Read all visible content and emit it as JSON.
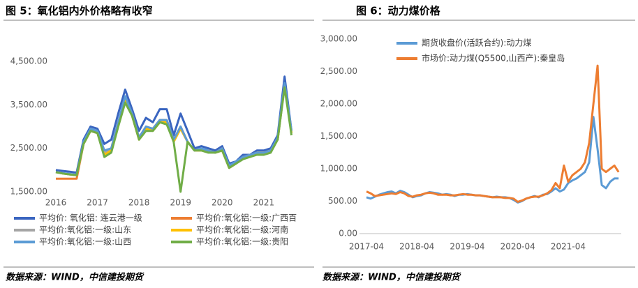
{
  "chart_data": [
    {
      "type": "line",
      "title": "图 5：氧化铝内外价格略有收窄",
      "source": "数据来源：WIND，中信建投期货",
      "categories": [
        "2016",
        null,
        null,
        null,
        null,
        null,
        "2017",
        null,
        null,
        null,
        null,
        null,
        "2018",
        null,
        null,
        null,
        null,
        null,
        "2019",
        null,
        null,
        null,
        null,
        null,
        "2020",
        null,
        null,
        null,
        null,
        null,
        "2021",
        null,
        null,
        null,
        null
      ],
      "ylim": [
        1500,
        4500
      ],
      "yticks": [
        {
          "value": 1500,
          "label": "1,500.00"
        },
        {
          "value": 2500,
          "label": "2,500.00"
        },
        {
          "value": 3500,
          "label": "3,500.00"
        },
        {
          "value": 4500,
          "label": "4,500.00"
        }
      ],
      "series": [
        {
          "name": "平均价:  氧化铝:  连云港一级",
          "color": "#3a65c0",
          "values": [
            2000,
            1980,
            1960,
            1940,
            2700,
            3000,
            2950,
            2600,
            2700,
            3300,
            3850,
            3400,
            2900,
            3200,
            3100,
            3400,
            3400,
            2800,
            3300,
            2900,
            2500,
            2550,
            2500,
            2450,
            2550,
            2150,
            2200,
            2350,
            2350,
            2450,
            2450,
            2500,
            2800,
            4150,
            2900
          ]
        },
        {
          "name": "平均价:氧化铝:一级:广西百",
          "color": "#ed7d31",
          "values": [
            1800,
            1800,
            1800,
            1800,
            2600,
            2900,
            2850,
            2400,
            2500,
            3100,
            3650,
            3300,
            2750,
            3000,
            2950,
            3150,
            3150,
            2700,
            3000,
            2650,
            2450,
            2450,
            2450,
            2400,
            2500,
            2050,
            2150,
            2300,
            2350,
            2400,
            2400,
            2450,
            2700,
            3950,
            2850
          ]
        },
        {
          "name": "平均价:氧化铝:一级:山东",
          "color": "#a5a5a5",
          "values": [
            1950,
            1920,
            1900,
            1880,
            2600,
            2900,
            2850,
            2400,
            2450,
            3050,
            3600,
            3250,
            2700,
            2950,
            2900,
            3100,
            3100,
            2650,
            2950,
            2650,
            2450,
            2450,
            2450,
            2400,
            2450,
            2050,
            2150,
            2300,
            2300,
            2400,
            2400,
            2450,
            2700,
            3950,
            2850
          ]
        },
        {
          "name": "平均价:氧化铝:一级:河南",
          "color": "#ffc000",
          "values": [
            1950,
            1920,
            1900,
            1880,
            2600,
            2900,
            2850,
            2350,
            2450,
            3050,
            3600,
            3250,
            2700,
            2950,
            2900,
            3100,
            3100,
            2650,
            2950,
            2650,
            2450,
            2450,
            2450,
            2400,
            2450,
            2050,
            2150,
            2300,
            2300,
            2400,
            2400,
            2450,
            2700,
            3950,
            2850
          ]
        },
        {
          "name": "平均价:氧化铝:一级:山西",
          "color": "#5b9bd5",
          "values": [
            1950,
            1930,
            1910,
            1890,
            2650,
            2950,
            2900,
            2450,
            2500,
            3100,
            3700,
            3300,
            2750,
            3000,
            2950,
            3150,
            3150,
            2700,
            3000,
            2650,
            2450,
            2500,
            2450,
            2400,
            2500,
            2100,
            2200,
            2300,
            2350,
            2400,
            2400,
            2450,
            2750,
            4000,
            2900
          ]
        },
        {
          "name": "平均价:氧化铝:一级:贵阳",
          "color": "#70ad47",
          "values": [
            1950,
            1920,
            1900,
            1880,
            2600,
            2900,
            2850,
            2300,
            2400,
            3000,
            3550,
            3250,
            2700,
            2900,
            2900,
            3100,
            3050,
            2650,
            1500,
            2650,
            2450,
            2450,
            2400,
            2400,
            2450,
            2050,
            2150,
            2250,
            2300,
            2350,
            2350,
            2400,
            2700,
            3900,
            2800
          ]
        }
      ]
    },
    {
      "type": "line",
      "title": "图 6：动力煤价格",
      "source": "数据来源：WIND，中信建投期货",
      "categories": [
        "2017-04",
        null,
        null,
        null,
        null,
        null,
        null,
        null,
        null,
        null,
        null,
        null,
        "2018-04",
        null,
        null,
        null,
        null,
        null,
        null,
        null,
        null,
        null,
        null,
        null,
        "2019-04",
        null,
        null,
        null,
        null,
        null,
        null,
        null,
        null,
        null,
        null,
        null,
        "2020-04",
        null,
        null,
        null,
        null,
        null,
        null,
        null,
        null,
        null,
        null,
        null,
        "2021-04",
        null,
        null,
        null,
        null,
        null,
        null,
        null,
        null,
        null,
        null,
        null,
        null
      ],
      "ylim": [
        0,
        3000
      ],
      "yticks": [
        {
          "value": 0,
          "label": "0.00"
        },
        {
          "value": 500,
          "label": "500.00"
        },
        {
          "value": 1000,
          "label": "1,000.00"
        },
        {
          "value": 1500,
          "label": "1,500.00"
        },
        {
          "value": 2000,
          "label": "2,000.00"
        },
        {
          "value": 2500,
          "label": "2,500.00"
        },
        {
          "value": 3000,
          "label": "3,000.00"
        }
      ],
      "series": [
        {
          "name": "期货收盘价(活跃合约):动力煤",
          "color": "#5b9bd5",
          "values": [
            560,
            540,
            570,
            600,
            620,
            640,
            650,
            620,
            660,
            640,
            600,
            560,
            580,
            590,
            620,
            640,
            630,
            620,
            600,
            610,
            600,
            580,
            600,
            600,
            610,
            600,
            590,
            590,
            580,
            570,
            560,
            570,
            560,
            560,
            550,
            520,
            480,
            500,
            540,
            560,
            580,
            560,
            600,
            610,
            650,
            700,
            650,
            680,
            780,
            820,
            850,
            900,
            950,
            1100,
            1800,
            1300,
            750,
            700,
            800,
            850,
            850
          ]
        },
        {
          "name": "市场价:动力煤(Q5500,山西产):秦皇岛",
          "color": "#ed7d31",
          "values": [
            650,
            620,
            580,
            590,
            600,
            610,
            620,
            610,
            640,
            620,
            580,
            570,
            590,
            600,
            620,
            630,
            620,
            600,
            600,
            600,
            590,
            590,
            600,
            610,
            600,
            600,
            590,
            590,
            580,
            570,
            560,
            560,
            560,
            550,
            550,
            540,
            490,
            510,
            540,
            560,
            570,
            570,
            590,
            620,
            670,
            780,
            700,
            1050,
            800,
            900,
            950,
            1000,
            1100,
            1400,
            2000,
            2590,
            1000,
            950,
            1000,
            1050,
            950
          ]
        }
      ]
    }
  ]
}
